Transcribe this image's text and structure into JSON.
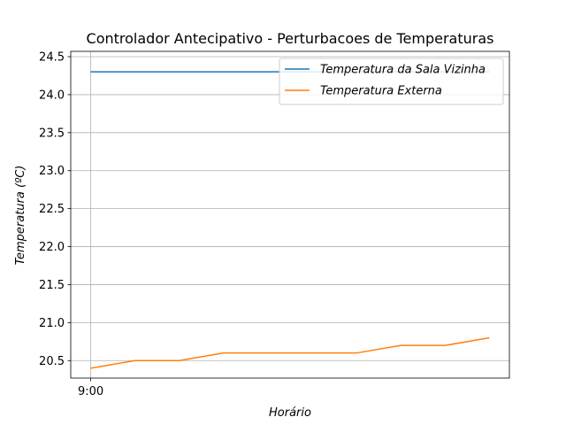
{
  "chart_data": {
    "type": "line",
    "title": "Controlador Antecipativo - Perturbacoes de Temperaturas",
    "xlabel": "Horário",
    "ylabel": "Temperatura (ºC)",
    "x": [
      0,
      1,
      2,
      3,
      4,
      5,
      6,
      7,
      8,
      9
    ],
    "x_ticks": [
      {
        "x": 0,
        "label": "9:00"
      }
    ],
    "xlim": [
      -0.45,
      9.45
    ],
    "ylim": [
      20.27,
      24.57
    ],
    "y_ticks": [
      "20.5",
      "21.0",
      "21.5",
      "22.0",
      "22.5",
      "23.0",
      "23.5",
      "24.0",
      "24.5"
    ],
    "grid": true,
    "legend_position": "top-right",
    "series": [
      {
        "name": "Temperatura da Sala Vizinha",
        "color": "#1f77b4",
        "values": [
          24.3,
          24.3,
          24.3,
          24.3,
          24.3,
          24.3,
          24.3,
          24.3,
          24.3,
          24.3
        ]
      },
      {
        "name": "Temperatura Externa",
        "color": "#ff7f0e",
        "values": [
          20.4,
          20.5,
          20.5,
          20.6,
          20.6,
          20.6,
          20.6,
          20.7,
          20.7,
          20.8
        ]
      }
    ]
  }
}
